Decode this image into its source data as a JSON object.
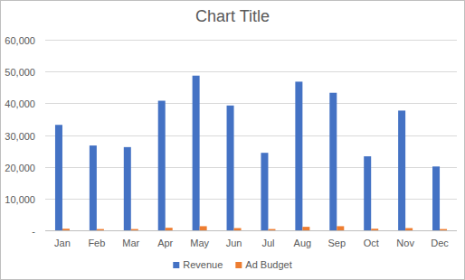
{
  "chart_data": {
    "type": "bar",
    "title": "Chart Title",
    "categories": [
      "Jan",
      "Feb",
      "Mar",
      "Apr",
      "May",
      "Jun",
      "Jul",
      "Aug",
      "Sep",
      "Oct",
      "Nov",
      "Dec"
    ],
    "series": [
      {
        "name": "Revenue",
        "color": "#4472c4",
        "values": [
          33200,
          26700,
          26200,
          40800,
          48700,
          39300,
          24400,
          46800,
          43300,
          23300,
          37700,
          20100
        ]
      },
      {
        "name": "Ad Budget",
        "color": "#ed7d31",
        "values": [
          500,
          400,
          400,
          800,
          1300,
          700,
          400,
          1100,
          1300,
          500,
          700,
          400
        ]
      }
    ],
    "ylim": [
      0,
      60000
    ],
    "yticks": [
      {
        "value": 0,
        "label": "-"
      },
      {
        "value": 10000,
        "label": "10,000"
      },
      {
        "value": 20000,
        "label": "20,000"
      },
      {
        "value": 30000,
        "label": "30,000"
      },
      {
        "value": 40000,
        "label": "40,000"
      },
      {
        "value": 50000,
        "label": "50,000"
      },
      {
        "value": 60000,
        "label": "60,000"
      }
    ],
    "grid": true,
    "legend": "bottom"
  }
}
